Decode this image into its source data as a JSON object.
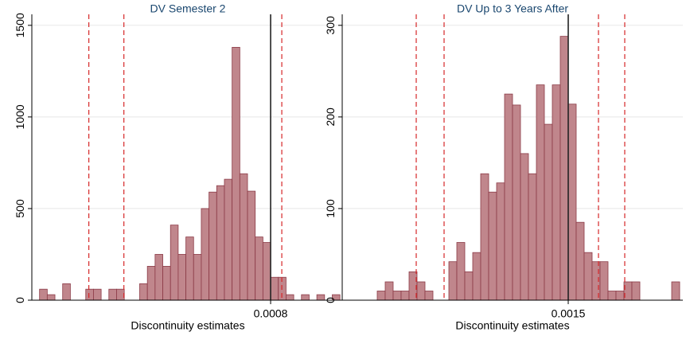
{
  "chart_data": [
    {
      "type": "histogram",
      "title": "DV Semester 2",
      "x_label": "Discontinuity estimates",
      "bins": [
        0.0002,
        0.00022,
        0.00024,
        0.00026,
        0.00028,
        0.0003,
        0.00032,
        0.00034,
        0.00036,
        0.00038,
        0.0004,
        0.00042,
        0.00044,
        0.00046,
        0.00048,
        0.0005,
        0.00052,
        0.00054,
        0.00056,
        0.00058,
        0.0006,
        0.00062,
        0.00064,
        0.00066,
        0.00068,
        0.0007,
        0.00072,
        0.00074,
        0.00076,
        0.00078,
        0.0008,
        0.00082,
        0.00084,
        0.00086,
        0.00088,
        0.0009,
        0.00092,
        0.00094,
        0.00096,
        0.00098
      ],
      "values": [
        60,
        30,
        0,
        90,
        0,
        0,
        60,
        60,
        0,
        60,
        60,
        0,
        0,
        90,
        185,
        250,
        185,
        410,
        250,
        345,
        250,
        500,
        590,
        625,
        660,
        1380,
        690,
        595,
        345,
        315,
        125,
        125,
        30,
        0,
        30,
        0,
        30,
        0,
        30
      ],
      "color": "#c0868c",
      "edge_color": "#8b3a46",
      "xlim": [
        0.00018,
        0.00099
      ],
      "xticks": [
        0.0008
      ],
      "ylim": [
        0,
        1560
      ],
      "yticks": [
        0,
        500,
        1000,
        1500
      ],
      "grid": true,
      "reference_lines": [
        {
          "x": 0.000328,
          "color": "#d62728",
          "dashed": true
        },
        {
          "x": 0.000419,
          "color": "#d62728",
          "dashed": true
        },
        {
          "x": 0.0008,
          "color": "#222222",
          "dashed": false
        },
        {
          "x": 0.000829,
          "color": "#d62728",
          "dashed": true
        }
      ]
    },
    {
      "type": "histogram",
      "title": "DV Up to 3 Years After",
      "x_label": "Discontinuity estimates",
      "bins": [
        0.0003,
        0.00035,
        0.0004,
        0.00045,
        0.0005,
        0.00055,
        0.0006,
        0.00065,
        0.0007,
        0.00075,
        0.0008,
        0.00085,
        0.0009,
        0.00095,
        0.001,
        0.00105,
        0.0011,
        0.00115,
        0.0012,
        0.00125,
        0.0013,
        0.00135,
        0.0014,
        0.00145,
        0.0015,
        0.00155,
        0.0016,
        0.00165,
        0.0017,
        0.00175,
        0.0018,
        0.00185,
        0.0019,
        0.00195,
        0.002,
        0.00205,
        0.0021,
        0.00215,
        0.0022
      ],
      "values": [
        10,
        20,
        10,
        10,
        31,
        20,
        10,
        0,
        0,
        42,
        63,
        31,
        52,
        138,
        118,
        128,
        225,
        213,
        160,
        138,
        235,
        192,
        235,
        288,
        214,
        85,
        52,
        42,
        42,
        10,
        10,
        20,
        20,
        0,
        0,
        0,
        0,
        20
      ],
      "color": "#c0868c",
      "edge_color": "#8b3a46",
      "xlim": [
        8e-05,
        0.00222
      ],
      "xticks": [
        0.0015
      ],
      "ylim": [
        0,
        312
      ],
      "yticks": [
        0,
        100,
        200,
        300
      ],
      "grid": true,
      "reference_lines": [
        {
          "x": 0.000545,
          "color": "#d62728",
          "dashed": true
        },
        {
          "x": 0.00072,
          "color": "#d62728",
          "dashed": true
        },
        {
          "x": 0.0015,
          "color": "#222222",
          "dashed": false
        },
        {
          "x": 0.00169,
          "color": "#d62728",
          "dashed": true
        },
        {
          "x": 0.001855,
          "color": "#d62728",
          "dashed": true
        }
      ]
    }
  ]
}
